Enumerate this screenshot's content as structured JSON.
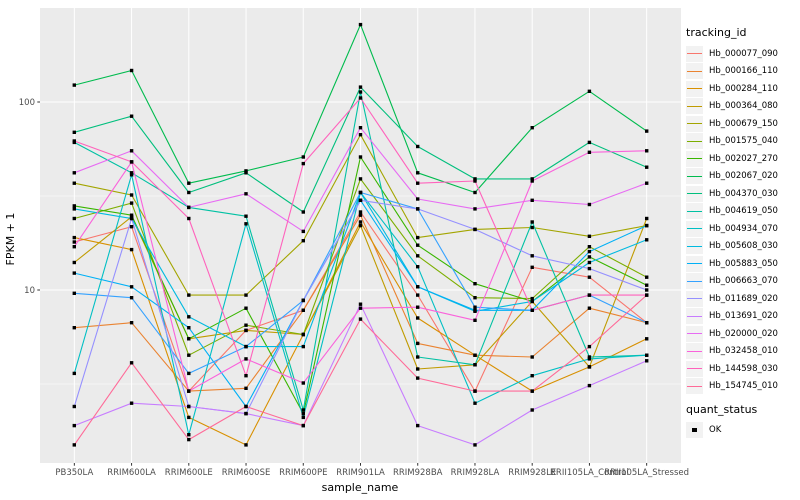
{
  "chart_data": {
    "type": "line",
    "title": "",
    "xlabel": "sample_name",
    "ylabel": "FPKM + 1",
    "y_scale": "log10",
    "ylim": [
      1.2,
      326
    ],
    "grid": true,
    "legend_position": "right",
    "point_shape": "filled-square",
    "point_color": "#000000",
    "panel_bg": "#EBEBEB",
    "grid_color": "#FFFFFF",
    "y_ticks": [
      {
        "v": 10,
        "label": "10"
      },
      {
        "v": 100,
        "label": "100"
      }
    ],
    "y_minor_ticks": [
      3.162,
      31.623
    ],
    "categories": [
      "PB350LA",
      "RRIM600LA",
      "RRIM600LE",
      "RRIM600SE",
      "RRIM600PE",
      "RRIM901LA",
      "RRIM928BA",
      "RRIM928LA",
      "RRIM928LE",
      "RRII105LA_Control",
      "RRII105LA_Stressed"
    ],
    "legend": {
      "tracking_title": "tracking_id",
      "quant_title": "quant_status",
      "quant_items": [
        {
          "label": "OK",
          "marker": "square",
          "color": "#000000"
        }
      ]
    },
    "series": [
      {
        "name": "Hb_000077_090",
        "color": "#F8766D",
        "values": [
          18,
          21.7,
          2.9,
          6.1,
          7.8,
          26,
          9.4,
          2.9,
          13.2,
          11.7,
          6.7
        ]
      },
      {
        "name": "Hb_000166_110",
        "color": "#EA8331",
        "values": [
          6.3,
          6.7,
          2.9,
          3.0,
          7.8,
          25,
          5.2,
          4.5,
          4.4,
          8.0,
          6.7
        ]
      },
      {
        "name": "Hb_000284_110",
        "color": "#D89000",
        "values": [
          19,
          16.4,
          2.1,
          1.5,
          5.8,
          23,
          7.1,
          4.5,
          2.9,
          3.9,
          5.5
        ]
      },
      {
        "name": "Hb_000364_080",
        "color": "#C09B00",
        "values": [
          14,
          24.5,
          5.5,
          6.1,
          5.8,
          22,
          3.8,
          4.0,
          8.7,
          3.9,
          24
        ]
      },
      {
        "name": "Hb_000679_150",
        "color": "#A3A500",
        "values": [
          37,
          32,
          9.4,
          9.4,
          18.3,
          67,
          19,
          21,
          21.5,
          19.3,
          22
        ]
      },
      {
        "name": "Hb_001575_040",
        "color": "#7CAE00",
        "values": [
          24,
          29,
          4.5,
          6.5,
          5.8,
          39,
          15.2,
          9.1,
          9.0,
          17,
          11.7
        ]
      },
      {
        "name": "Hb_002027_270",
        "color": "#39B600",
        "values": [
          28,
          25,
          5.5,
          8.0,
          2.2,
          51,
          17.3,
          10.8,
          8.7,
          15,
          10.6
        ]
      },
      {
        "name": "Hb_002067_020",
        "color": "#00BB4E",
        "values": [
          123,
          147,
          37,
          43,
          51,
          258,
          42,
          33,
          73,
          114,
          70
        ]
      },
      {
        "name": "Hb_004370_030",
        "color": "#00BF7D",
        "values": [
          69,
          84,
          33,
          42,
          26,
          120,
          58,
          39,
          39,
          61,
          45
        ]
      },
      {
        "name": "Hb_004619_050",
        "color": "#00C1A3",
        "values": [
          61,
          42,
          27.5,
          24.7,
          2.3,
          113,
          4.4,
          4.0,
          23,
          4.4,
          4.5
        ]
      },
      {
        "name": "Hb_004934_070",
        "color": "#00BFC4",
        "values": [
          3.6,
          41,
          1.7,
          22.5,
          2.1,
          33,
          13.3,
          2.5,
          3.5,
          4.3,
          4.5
        ]
      },
      {
        "name": "Hb_005608_030",
        "color": "#00BAE0",
        "values": [
          27,
          24,
          7.2,
          5.0,
          5.0,
          33,
          10.4,
          7.7,
          8.7,
          14,
          18.5
        ]
      },
      {
        "name": "Hb_005883_050",
        "color": "#00B0F6",
        "values": [
          12.3,
          10.4,
          6.3,
          2.4,
          8.8,
          30,
          10.4,
          7.8,
          7.8,
          16,
          22
        ]
      },
      {
        "name": "Hb_006663_070",
        "color": "#35A2FF",
        "values": [
          9.6,
          9.1,
          3.6,
          5.0,
          8.8,
          33,
          27,
          8.1,
          7.8,
          9.4,
          6.7
        ]
      },
      {
        "name": "Hb_011689_020",
        "color": "#9590FF",
        "values": [
          2.4,
          24,
          2.4,
          2.2,
          8.8,
          30,
          27,
          21,
          15.2,
          13,
          10
        ]
      },
      {
        "name": "Hb_013691_020",
        "color": "#C77CFF",
        "values": [
          1.9,
          2.5,
          2.4,
          2.2,
          1.9,
          8.4,
          1.9,
          1.5,
          2.3,
          3.1,
          4.2
        ]
      },
      {
        "name": "Hb_020000_020",
        "color": "#E76BF3",
        "values": [
          42,
          55,
          27.5,
          32.5,
          20.5,
          73,
          30.5,
          27,
          30,
          28.5,
          37
        ]
      },
      {
        "name": "Hb_032458_010",
        "color": "#FA62DB",
        "values": [
          17,
          48,
          2.9,
          4.3,
          3.2,
          8.0,
          8.1,
          6.9,
          38,
          54,
          55
        ]
      },
      {
        "name": "Hb_144598_030",
        "color": "#FF62BC",
        "values": [
          62,
          48,
          24,
          3.5,
          47,
          105,
          37,
          38,
          7.8,
          9.4,
          9.4
        ]
      },
      {
        "name": "Hb_154745_010",
        "color": "#FF6A98",
        "values": [
          1.5,
          4.1,
          1.6,
          2.4,
          1.9,
          7.0,
          3.4,
          2.9,
          2.9,
          5.0,
          9.4
        ]
      }
    ]
  }
}
